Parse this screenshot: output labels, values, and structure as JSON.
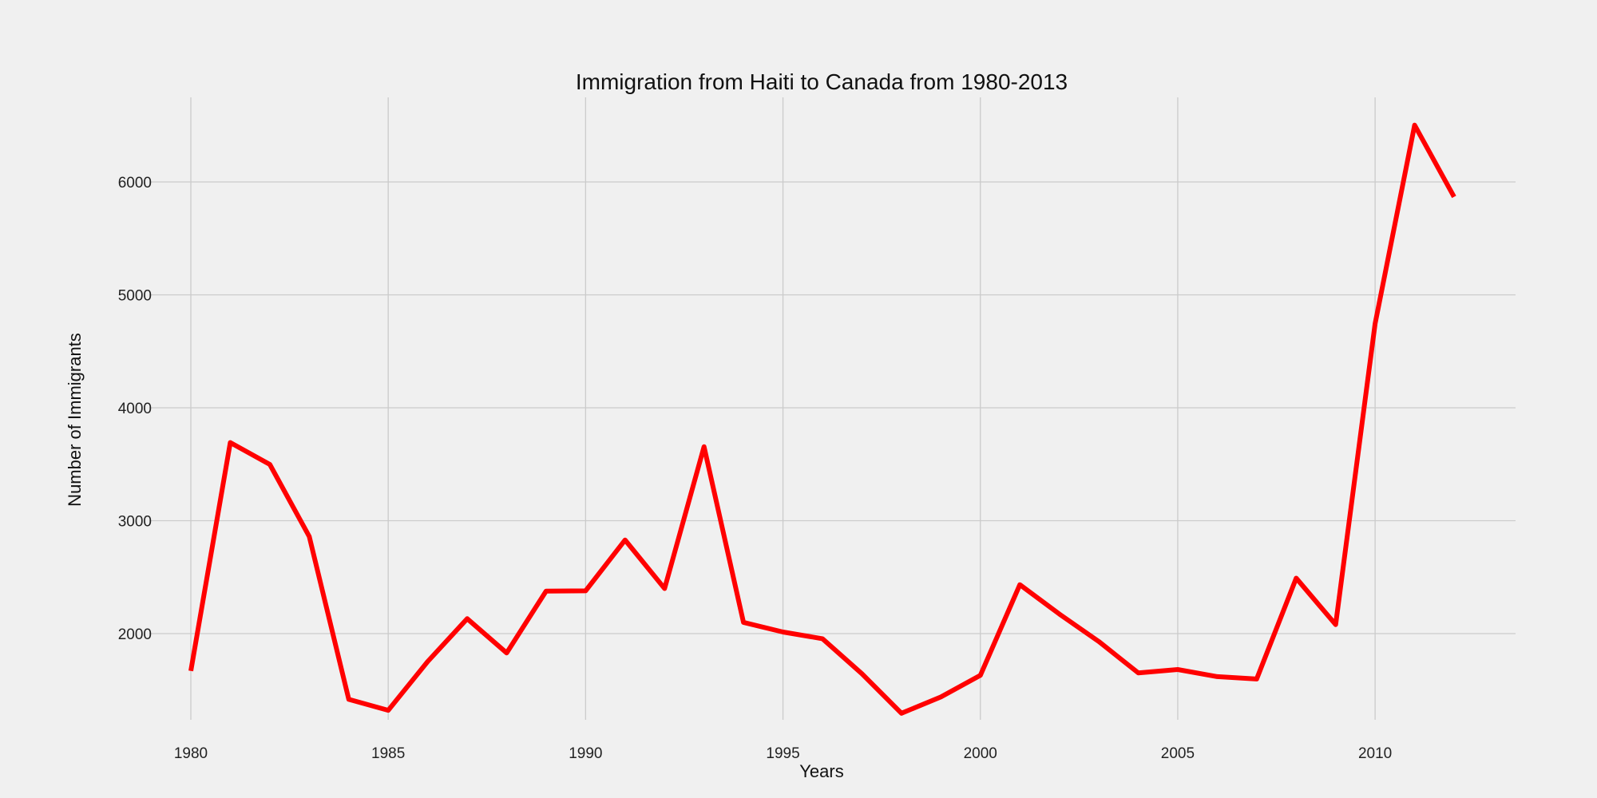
{
  "chart_data": {
    "type": "line",
    "title": "Immigration from Haiti to Canada from 1980-2013",
    "xlabel": "Years",
    "ylabel": "Number of Immigrants",
    "x": [
      1980,
      1981,
      1982,
      1983,
      1984,
      1985,
      1986,
      1987,
      1988,
      1989,
      1990,
      1991,
      1992,
      1993,
      1994,
      1995,
      1996,
      1997,
      1998,
      1999,
      2000,
      2001,
      2002,
      2003,
      2004,
      2005,
      2006,
      2007,
      2008,
      2009,
      2010,
      2011,
      2012
    ],
    "series": [
      {
        "color": "#ff0000",
        "values": [
          1670,
          3692,
          3498,
          2860,
          1418,
          1321,
          1753,
          2132,
          1829,
          2377,
          2379,
          2829,
          2399,
          3655,
          2100,
          2014,
          1955,
          1645,
          1295,
          1439,
          1631,
          2433,
          2174,
          1930,
          1652,
          1682,
          1619,
          1598,
          2491,
          2080,
          4744,
          6503,
          5868
        ]
      }
    ],
    "xticks": [
      "1980",
      "1985",
      "1990",
      "1995",
      "2000",
      "2005",
      "2010"
    ],
    "yticks": [
      "2000",
      "3000",
      "4000",
      "5000",
      "6000"
    ],
    "xlim": [
      1978.4,
      2013.6
    ],
    "ylim": [
      1034,
      6764
    ],
    "grid": true,
    "legend": "none"
  },
  "colors": {
    "background": "#f0f0f0",
    "grid": "#cbcbcb",
    "line": "#ff0000"
  }
}
